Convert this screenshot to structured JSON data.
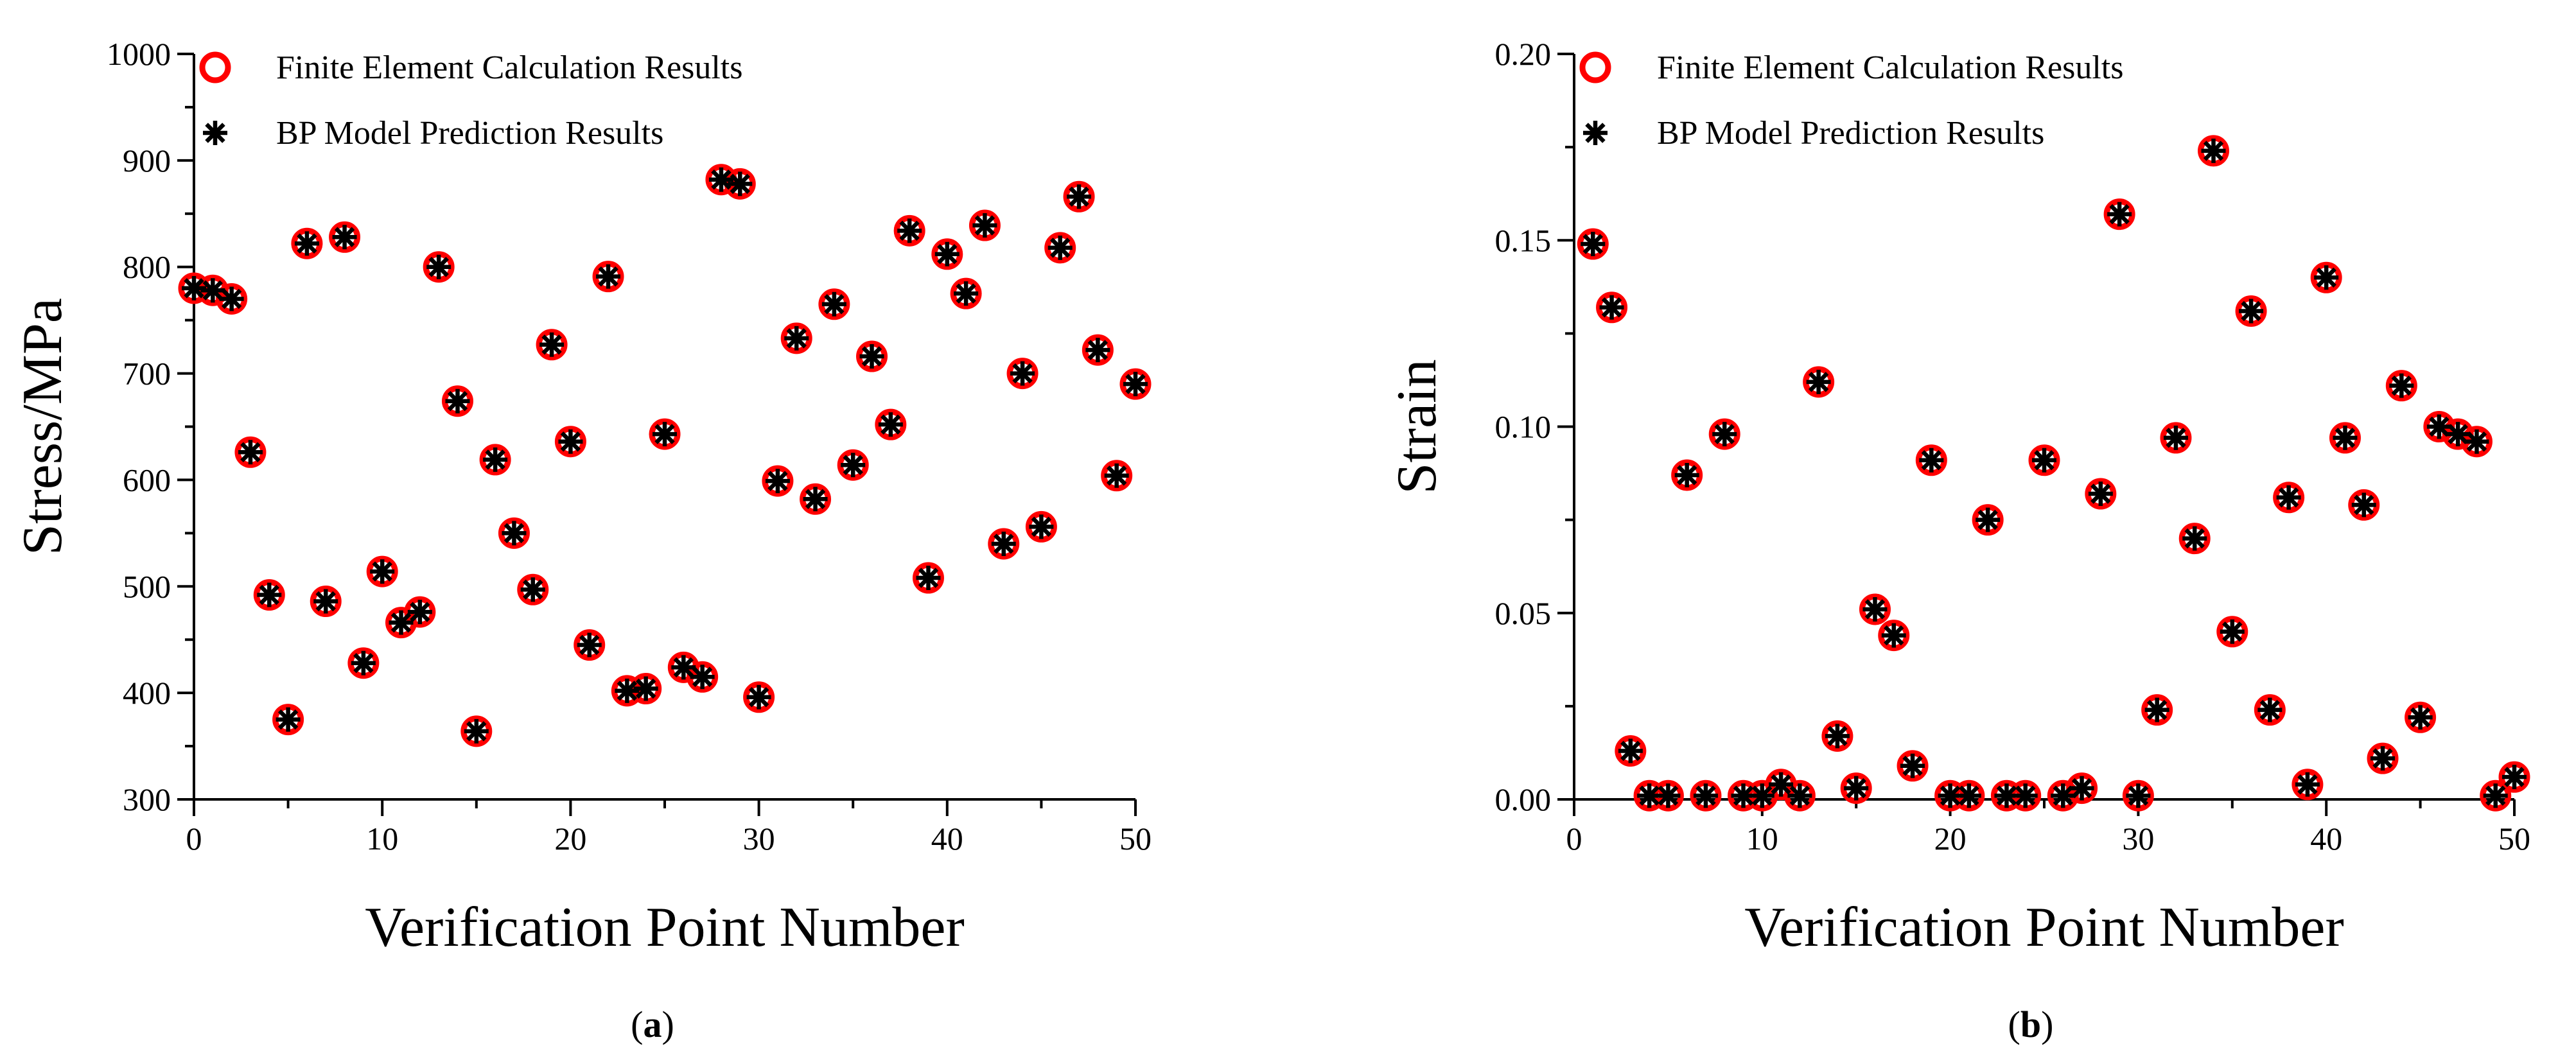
{
  "chart_data": [
    {
      "type": "scatter",
      "panel_label": "a",
      "xlabel": "Verification Point Number",
      "ylabel": "Stress/MPa",
      "xlim": [
        0,
        50
      ],
      "ylim": [
        300,
        1000
      ],
      "xticks": [
        0,
        10,
        20,
        30,
        40,
        50
      ],
      "yticks": [
        300,
        400,
        500,
        600,
        700,
        800,
        900,
        1000
      ],
      "legend_position": "top-left",
      "grid": false,
      "series": [
        {
          "name": "Finite Element Calculation Results",
          "marker": "open-circle",
          "color": "#ff0000",
          "x": [
            0,
            1,
            2,
            3,
            4,
            5,
            6,
            7,
            8,
            9,
            10,
            11,
            12,
            13,
            14,
            15,
            16,
            17,
            18,
            19,
            20,
            21,
            22,
            23,
            24,
            25,
            26,
            27,
            28,
            29,
            30,
            31,
            32,
            33,
            34,
            35,
            36,
            37,
            38,
            39,
            40,
            41,
            42,
            43,
            44,
            45,
            46,
            47,
            48,
            49,
            50
          ],
          "y": [
            780,
            778,
            770,
            626,
            492,
            375,
            822,
            486,
            828,
            428,
            514,
            466,
            476,
            800,
            674,
            364,
            619,
            550,
            497,
            727,
            636,
            445,
            791,
            402,
            404,
            643,
            424,
            415,
            882,
            878,
            396,
            599,
            733,
            582,
            765,
            614,
            716,
            652,
            834,
            508,
            812,
            775,
            839,
            540,
            700,
            556,
            818,
            866,
            722,
            604,
            690
          ]
        },
        {
          "name": "BP Model Prediction Results",
          "marker": "asterisk",
          "color": "#000000",
          "x": [
            0,
            1,
            2,
            3,
            4,
            5,
            6,
            7,
            8,
            9,
            10,
            11,
            12,
            13,
            14,
            15,
            16,
            17,
            18,
            19,
            20,
            21,
            22,
            23,
            24,
            25,
            26,
            27,
            28,
            29,
            30,
            31,
            32,
            33,
            34,
            35,
            36,
            37,
            38,
            39,
            40,
            41,
            42,
            43,
            44,
            45,
            46,
            47,
            48,
            49,
            50
          ],
          "y": [
            780,
            778,
            770,
            626,
            492,
            375,
            822,
            486,
            828,
            428,
            514,
            466,
            476,
            800,
            674,
            364,
            619,
            550,
            497,
            727,
            636,
            445,
            791,
            402,
            404,
            643,
            424,
            415,
            882,
            878,
            396,
            599,
            733,
            582,
            765,
            614,
            716,
            652,
            834,
            508,
            812,
            775,
            839,
            540,
            700,
            556,
            818,
            866,
            722,
            604,
            690
          ]
        }
      ]
    },
    {
      "type": "scatter",
      "panel_label": "b",
      "xlabel": "Verification Point Number",
      "ylabel": "Strain",
      "xlim": [
        0,
        50
      ],
      "ylim": [
        0,
        0.2
      ],
      "xticks": [
        0,
        10,
        20,
        30,
        40,
        50
      ],
      "yticks": [
        "0.00",
        "0.05",
        "0.10",
        "0.15",
        "0.20"
      ],
      "legend_position": "top-left",
      "grid": false,
      "series": [
        {
          "name": "Finite Element Calculation Results",
          "marker": "open-circle",
          "color": "#ff0000",
          "x": [
            1,
            2,
            3,
            4,
            5,
            6,
            7,
            8,
            9,
            10,
            11,
            12,
            13,
            14,
            15,
            16,
            17,
            18,
            19,
            20,
            21,
            22,
            23,
            24,
            25,
            26,
            27,
            28,
            29,
            30,
            31,
            32,
            33,
            34,
            35,
            36,
            37,
            38,
            39,
            40,
            41,
            42,
            43,
            44,
            45,
            46,
            47,
            48,
            49,
            50
          ],
          "y": [
            0.149,
            0.132,
            0.013,
            0.001,
            0.001,
            0.087,
            0.001,
            0.098,
            0.001,
            0.001,
            0.004,
            0.001,
            0.112,
            0.017,
            0.003,
            0.051,
            0.044,
            0.009,
            0.091,
            0.001,
            0.001,
            0.075,
            0.001,
            0.001,
            0.091,
            0.001,
            0.003,
            0.082,
            0.157,
            0.001,
            0.024,
            0.097,
            0.07,
            0.174,
            0.045,
            0.131,
            0.024,
            0.081,
            0.004,
            0.14,
            0.097,
            0.079,
            0.011,
            0.111,
            0.022,
            0.1,
            0.098,
            0.096,
            0.001,
            0.006
          ]
        },
        {
          "name": "BP Model Prediction Results",
          "marker": "asterisk",
          "color": "#000000",
          "x": [
            1,
            2,
            3,
            4,
            5,
            6,
            7,
            8,
            9,
            10,
            11,
            12,
            13,
            14,
            15,
            16,
            17,
            18,
            19,
            20,
            21,
            22,
            23,
            24,
            25,
            26,
            27,
            28,
            29,
            30,
            31,
            32,
            33,
            34,
            35,
            36,
            37,
            38,
            39,
            40,
            41,
            42,
            43,
            44,
            45,
            46,
            47,
            48,
            49,
            50
          ],
          "y": [
            0.149,
            0.132,
            0.013,
            0.001,
            0.001,
            0.087,
            0.001,
            0.098,
            0.001,
            0.001,
            0.004,
            0.001,
            0.112,
            0.017,
            0.003,
            0.051,
            0.044,
            0.009,
            0.091,
            0.001,
            0.001,
            0.075,
            0.001,
            0.001,
            0.091,
            0.001,
            0.003,
            0.082,
            0.157,
            0.001,
            0.024,
            0.097,
            0.07,
            0.174,
            0.045,
            0.131,
            0.024,
            0.081,
            0.004,
            0.14,
            0.097,
            0.079,
            0.011,
            0.111,
            0.022,
            0.1,
            0.098,
            0.096,
            0.001,
            0.006
          ]
        }
      ]
    }
  ]
}
